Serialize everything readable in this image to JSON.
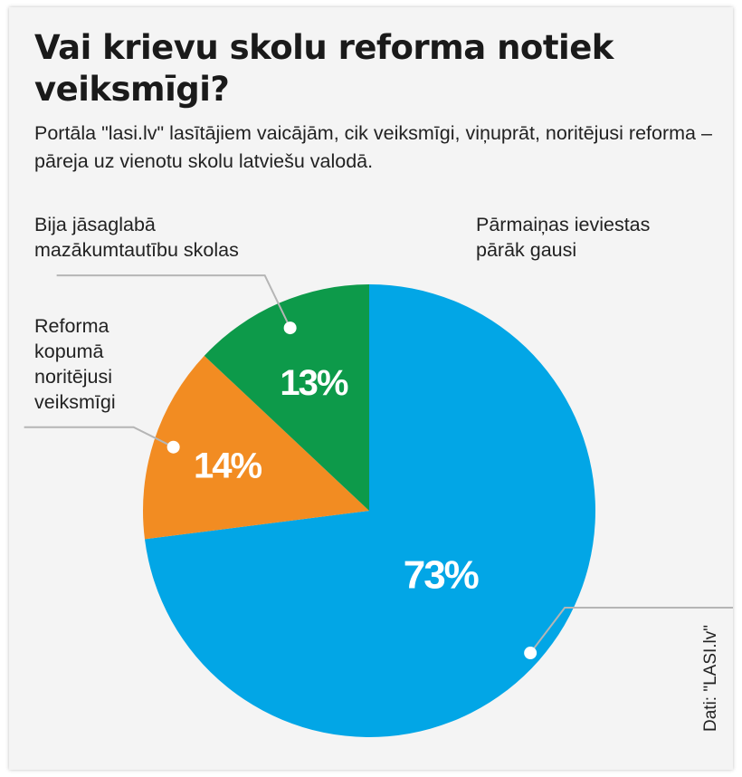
{
  "chart_data": {
    "type": "pie",
    "title": "Vai krievu skolu reforma notiek veiksmīgi?",
    "subtitle": "Portāla \"lasi.lv\" lasītājiem vaicājām, cik veiksmīgi, viņuprāt, noritējusi reforma – pāreja uz vienotu skolu latviešu valodā.",
    "slices": [
      {
        "label": "Pārmaiņas ieviestas pārāk gausi",
        "value": 73,
        "value_label": "73%",
        "color": "#02a6e6"
      },
      {
        "label": "Reforma kopumā noritējusi veiksmīgi",
        "value": 14,
        "value_label": "14%",
        "color": "#f28c22"
      },
      {
        "label": "Bija jāsaglabā mazākumtautību skolas",
        "value": 13,
        "value_label": "13%",
        "color": "#0d9a4a"
      }
    ],
    "source": "Dati: \"LASI.lv\""
  },
  "labels": {
    "slice0": [
      "Pārmaiņas ieviestas",
      "pārāk gausi"
    ],
    "slice1": [
      "Reforma",
      "kopumā",
      "noritējusi",
      "veiksmīgi"
    ],
    "slice2": [
      "Bija jāsaglabā",
      "mazākumtautību skolas"
    ]
  },
  "colors": {
    "background": "#f4f4f4",
    "leader": "#b5b5b5"
  }
}
